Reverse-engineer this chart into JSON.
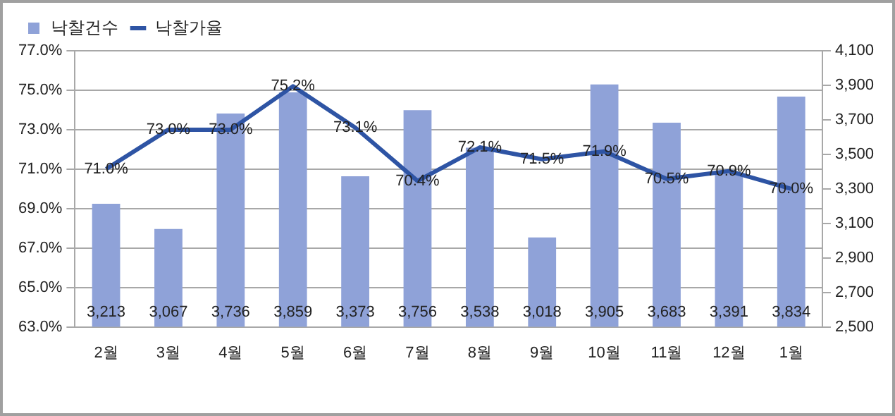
{
  "chart_data": {
    "type": "bar",
    "categories": [
      "2월",
      "3월",
      "4월",
      "5월",
      "6월",
      "7월",
      "8월",
      "9월",
      "10월",
      "11월",
      "12월",
      "1월"
    ],
    "series": [
      {
        "name": "낙찰건수",
        "axis": "y2",
        "color": "#8fa2d8",
        "values": [
          3213,
          3067,
          3736,
          3859,
          3373,
          3756,
          3538,
          3018,
          3905,
          3683,
          3391,
          3834
        ],
        "value_labels": [
          "3,213",
          "3,067",
          "3,736",
          "3,859",
          "3,373",
          "3,756",
          "3,538",
          "3,018",
          "3,905",
          "3,683",
          "3,391",
          "3,834"
        ]
      },
      {
        "name": "낙찰가율",
        "type": "line",
        "axis": "y",
        "color": "#2e54a4",
        "values": [
          71.0,
          73.0,
          73.0,
          75.2,
          73.1,
          70.4,
          72.1,
          71.5,
          71.9,
          70.5,
          70.9,
          70.0
        ],
        "value_labels": [
          "71.0%",
          "73.0%",
          "73.0%",
          "75.2%",
          "73.1%",
          "70.4%",
          "72.1%",
          "71.5%",
          "71.9%",
          "70.5%",
          "70.9%",
          "70.0%"
        ]
      }
    ],
    "ylim": [
      63,
      77
    ],
    "yticks": [
      {
        "value": 63,
        "label": "63.0%"
      },
      {
        "value": 65,
        "label": "65.0%"
      },
      {
        "value": 67,
        "label": "67.0%"
      },
      {
        "value": 69,
        "label": "69.0%"
      },
      {
        "value": 71,
        "label": "71.0%"
      },
      {
        "value": 73,
        "label": "73.0%"
      },
      {
        "value": 75,
        "label": "75.0%"
      },
      {
        "value": 77,
        "label": "77.0%"
      }
    ],
    "y2lim": [
      2500,
      4100
    ],
    "y2ticks": [
      {
        "value": 2500,
        "label": "2,500"
      },
      {
        "value": 2700,
        "label": "2,700"
      },
      {
        "value": 2900,
        "label": "2,900"
      },
      {
        "value": 3100,
        "label": "3,100"
      },
      {
        "value": 3300,
        "label": "3,300"
      },
      {
        "value": 3500,
        "label": "3,500"
      },
      {
        "value": 3700,
        "label": "3,700"
      },
      {
        "value": 3900,
        "label": "3,900"
      },
      {
        "value": 4100,
        "label": "4,100"
      }
    ],
    "grid": "y",
    "legend": "top left",
    "marker": "none",
    "line_style": "solid"
  }
}
